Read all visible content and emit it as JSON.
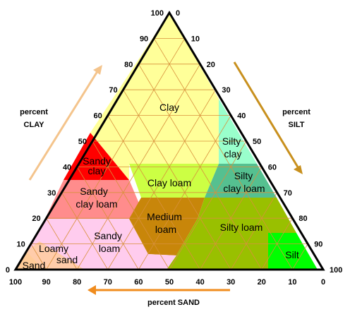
{
  "clay_axis": {
    "title_line1": "percent",
    "title_line2": "CLAY",
    "ticks": [
      "0",
      "10",
      "20",
      "30",
      "40",
      "50",
      "60",
      "70",
      "80",
      "90",
      "100"
    ],
    "arrow_color": "#f4c48c"
  },
  "silt_axis": {
    "title_line1": "percent",
    "title_line2": "SILT",
    "ticks": [
      "0",
      "10",
      "20",
      "30",
      "40",
      "50",
      "60",
      "70",
      "80",
      "90",
      "100"
    ],
    "arrow_color": "#c8901e"
  },
  "sand_axis": {
    "title": "percent SAND",
    "ticks": [
      "100",
      "90",
      "80",
      "70",
      "60",
      "50",
      "40",
      "30",
      "20",
      "10",
      "0"
    ],
    "arrow_color": "#f08c1e"
  },
  "regions": [
    {
      "id": "clay",
      "lines": [
        "Clay"
      ],
      "color": "#ffff99"
    },
    {
      "id": "silty-clay",
      "lines": [
        "Silty",
        "clay"
      ],
      "color": "#99ffcc"
    },
    {
      "id": "sandy-clay",
      "lines": [
        "Sandy",
        "clay"
      ],
      "color": "#ff0000"
    },
    {
      "id": "clay-loam",
      "lines": [
        "Clay loam"
      ],
      "color": "#ccff44"
    },
    {
      "id": "silty-clay-loam",
      "lines": [
        "Silty",
        "clay loam"
      ],
      "color": "#55c090"
    },
    {
      "id": "sandy-clay-loam",
      "lines": [
        "Sandy",
        "clay loam"
      ],
      "color": "#ff8c8c"
    },
    {
      "id": "medium-loam",
      "lines": [
        "Medium",
        "loam"
      ],
      "color": "#c8860a"
    },
    {
      "id": "silty-loam",
      "lines": [
        "Silty loam"
      ],
      "color": "#99c000"
    },
    {
      "id": "sandy-loam",
      "lines": [
        "Sandy",
        "loam"
      ],
      "color": "#ffccee"
    },
    {
      "id": "loamy-sand",
      "lines": [
        "Loamy",
        "sand"
      ],
      "color": "#ffccaa"
    },
    {
      "id": "sand",
      "lines": [
        "Sand"
      ],
      "color": "#ffcc99"
    },
    {
      "id": "silt",
      "lines": [
        "Silt"
      ],
      "color": "#00ff00"
    }
  ]
}
